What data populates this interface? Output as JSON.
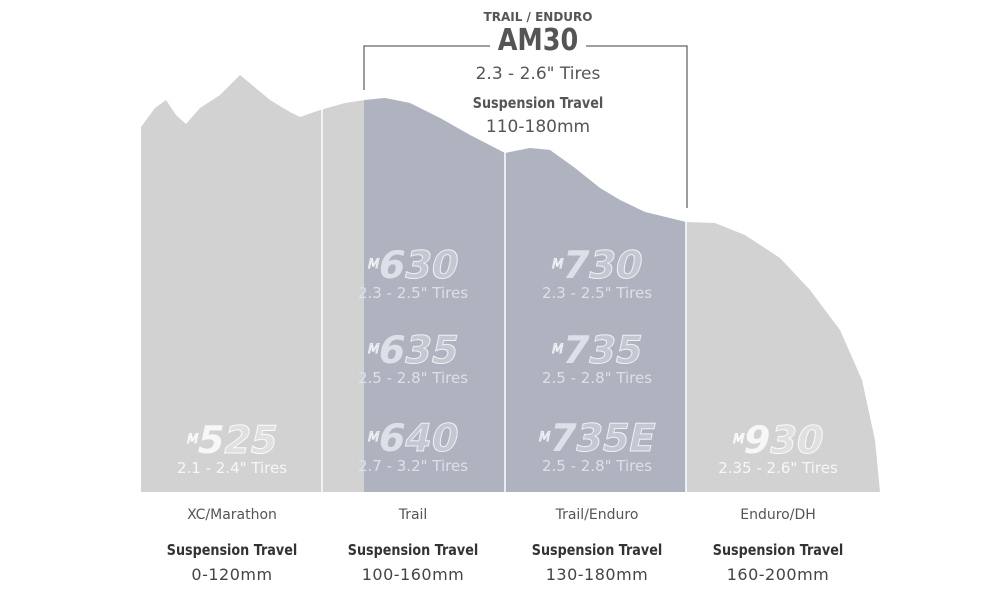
{
  "header": {
    "category": "TRAIL / ENDURO",
    "model": "AM30",
    "tires": "2.3 - 2.6\" Tires",
    "suspension_label": "Suspension Travel",
    "travel": "110-180mm"
  },
  "colors": {
    "terrain": "#d2d2d2",
    "highlight": "#aeb3bf",
    "bracket": "#666666"
  },
  "columns": [
    {
      "category": "XC/Marathon",
      "suspension_label": "Suspension Travel",
      "travel": "0-120mm",
      "models": [
        {
          "prefix": "M",
          "lead": "5",
          "rest": "25",
          "tires": "2.1 - 2.4\" Tires"
        }
      ]
    },
    {
      "category": "Trail",
      "suspension_label": "Suspension Travel",
      "travel": "100-160mm",
      "models": [
        {
          "prefix": "M",
          "lead": "6",
          "rest": "30",
          "tires": "2.3 - 2.5\" Tires"
        },
        {
          "prefix": "M",
          "lead": "6",
          "rest": "35",
          "tires": "2.5 - 2.8\" Tires"
        },
        {
          "prefix": "M",
          "lead": "6",
          "rest": "40",
          "tires": "2.7 - 3.2\" Tires"
        }
      ]
    },
    {
      "category": "Trail/Enduro",
      "suspension_label": "Suspension Travel",
      "travel": "130-180mm",
      "models": [
        {
          "prefix": "M",
          "lead": "7",
          "rest": "30",
          "tires": "2.3 - 2.5\" Tires"
        },
        {
          "prefix": "M",
          "lead": "7",
          "rest": "35",
          "tires": "2.5 - 2.8\" Tires"
        },
        {
          "prefix": "M",
          "lead": "7",
          "rest": "35E",
          "tires": "2.5 - 2.8\" Tires"
        }
      ]
    },
    {
      "category": "Enduro/DH",
      "suspension_label": "Suspension Travel",
      "travel": "160-200mm",
      "models": [
        {
          "prefix": "M",
          "lead": "9",
          "rest": "30",
          "tires": "2.35 - 2.6\" Tires"
        }
      ]
    }
  ]
}
